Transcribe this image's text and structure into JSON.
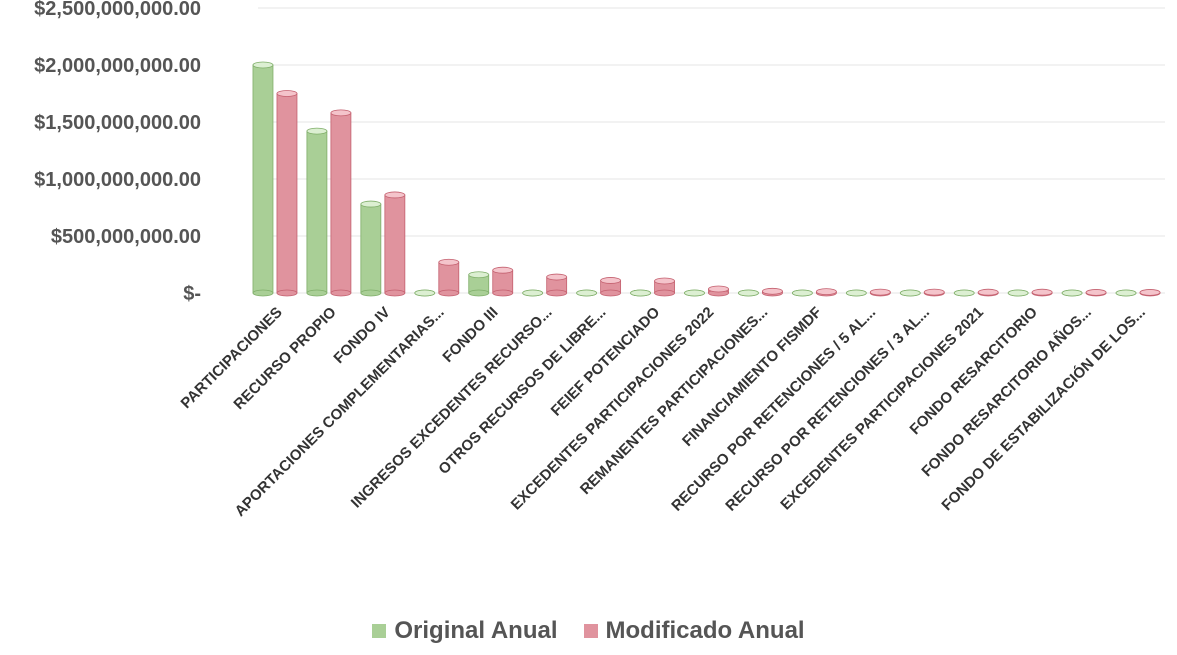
{
  "chart_data": {
    "type": "bar",
    "title": "",
    "xlabel": "",
    "ylabel": "",
    "ylim": [
      0,
      2500000000
    ],
    "yticks": [
      0,
      500000000,
      1000000000,
      1500000000,
      2000000000,
      2500000000
    ],
    "ytick_labels": [
      "$-",
      "$500,000,000.00",
      "$1,000,000,000.00",
      "$1,500,000,000.00",
      "$2,000,000,000.00",
      "$2,500,000,000.00"
    ],
    "grid": true,
    "legend_position": "bottom",
    "categories": [
      "PARTICIPACIONES",
      "RECURSO PROPIO",
      "FONDO IV",
      "APORTACIONES COMPLEMENTARIAS...",
      "FONDO III",
      "INGRESOS EXCEDENTES RECURSO...",
      "OTROS RECURSOS DE LIBRE...",
      "FEIEF POTENCIADO",
      "EXCEDENTES PARTICIPACIONES 2022",
      "REMANENTES PARTICIPACIONES...",
      "FINANCIAMIENTO FISMDF",
      "RECURSO POR RETENCIONES / 5 AL...",
      "RECURSO POR RETENCIONES / 3 AL...",
      "EXCEDENTES PARTICIPACIONES 2021",
      "FONDO RESARCITORIO",
      "FONDO RESARCITORIO AÑOS...",
      "FONDO DE ESTABILIZACIÓN DE LOS..."
    ],
    "series": [
      {
        "name": "Original Anual",
        "color": "#a9cf96",
        "values": [
          2000000000,
          1420000000,
          780000000,
          0,
          160000000,
          0,
          0,
          0,
          0,
          0,
          0,
          0,
          0,
          0,
          0,
          0,
          0
        ]
      },
      {
        "name": "Modificado Anual",
        "color": "#e0939e",
        "values": [
          1750000000,
          1580000000,
          860000000,
          270000000,
          200000000,
          140000000,
          110000000,
          105000000,
          35000000,
          15000000,
          12000000,
          8000000,
          8000000,
          7000000,
          7000000,
          5000000,
          5000000
        ]
      }
    ]
  }
}
